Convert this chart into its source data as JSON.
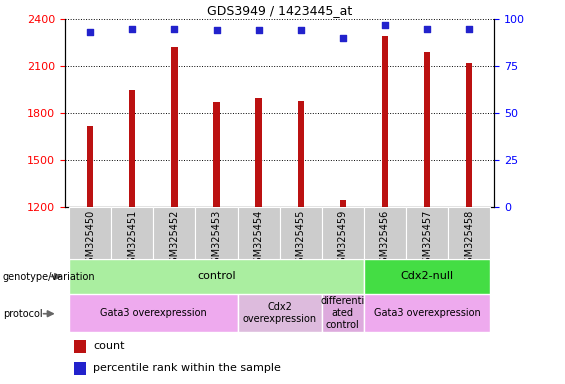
{
  "title": "GDS3949 / 1423445_at",
  "samples": [
    "GSM325450",
    "GSM325451",
    "GSM325452",
    "GSM325453",
    "GSM325454",
    "GSM325455",
    "GSM325459",
    "GSM325456",
    "GSM325457",
    "GSM325458"
  ],
  "counts": [
    1720,
    1950,
    2220,
    1870,
    1900,
    1880,
    1245,
    2290,
    2190,
    2120
  ],
  "percentile_ranks": [
    93,
    95,
    95,
    94,
    94,
    94,
    90,
    97,
    95,
    95
  ],
  "ylim_left": [
    1200,
    2400
  ],
  "ylim_right": [
    0,
    100
  ],
  "bar_color": "#bb1111",
  "dot_color": "#2222cc",
  "yticks_left": [
    1200,
    1500,
    1800,
    2100,
    2400
  ],
  "yticks_right": [
    0,
    25,
    50,
    75,
    100
  ],
  "genotype_groups": [
    {
      "label": "control",
      "start": 0,
      "end": 7,
      "color": "#aaeea0"
    },
    {
      "label": "Cdx2-null",
      "start": 7,
      "end": 10,
      "color": "#44dd44"
    }
  ],
  "protocol_groups": [
    {
      "label": "Gata3 overexpression",
      "start": 0,
      "end": 4,
      "color": "#eeaaee"
    },
    {
      "label": "Cdx2\noverexpression",
      "start": 4,
      "end": 6,
      "color": "#ddbbdd"
    },
    {
      "label": "differenti\nated\ncontrol",
      "start": 6,
      "end": 7,
      "color": "#ddaadd"
    },
    {
      "label": "Gata3 overexpression",
      "start": 7,
      "end": 10,
      "color": "#eeaaee"
    }
  ],
  "legend_count_color": "#bb1111",
  "legend_dot_color": "#2222cc",
  "bar_width": 0.15,
  "background_color": "#ffffff"
}
